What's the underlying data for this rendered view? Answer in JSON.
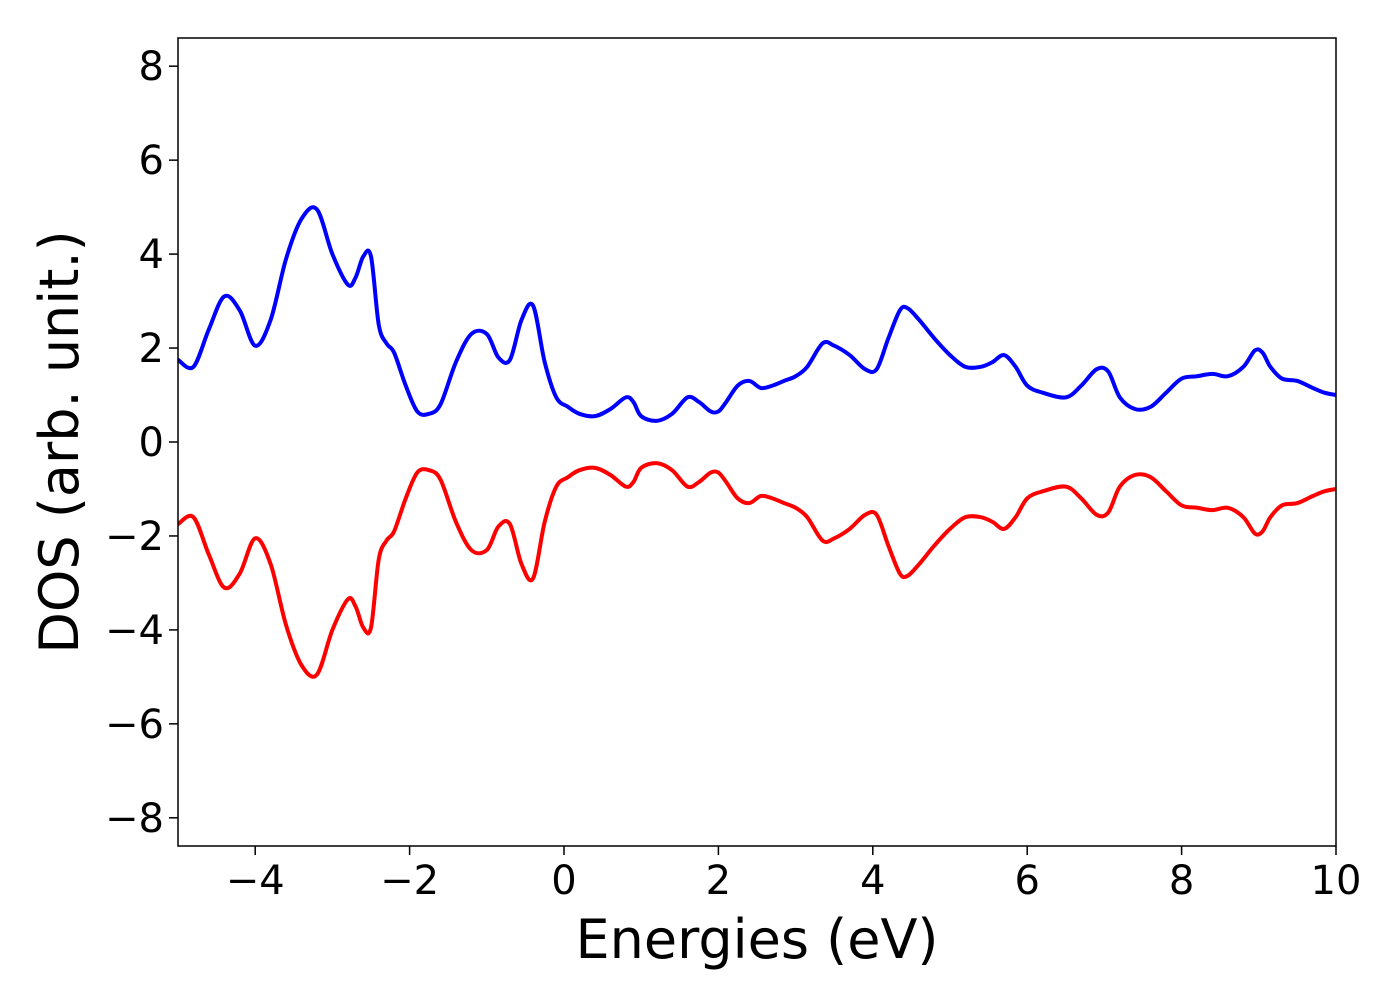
{
  "chart_data": {
    "type": "line",
    "title": "",
    "xlabel": "Energies (eV)",
    "ylabel": "DOS (arb. unit.)",
    "xlim": [
      -5,
      10
    ],
    "ylim": [
      -8.6,
      8.6
    ],
    "xticks": [
      -4,
      -2,
      0,
      2,
      4,
      6,
      8,
      10
    ],
    "xtick_labels": [
      "−4",
      "−2",
      "0",
      "2",
      "4",
      "6",
      "8",
      "10"
    ],
    "yticks": [
      8,
      6,
      4,
      2,
      0,
      -2,
      -4,
      -6,
      -8
    ],
    "ytick_labels": [
      "8",
      "6",
      "4",
      "2",
      "0",
      "−2",
      "−4",
      "−6",
      "−8"
    ],
    "grid": false,
    "legend": "none",
    "series": [
      {
        "color": "#0000ff",
        "x": [
          -5.0,
          -4.8,
          -4.6,
          -4.4,
          -4.2,
          -4.0,
          -3.8,
          -3.6,
          -3.4,
          -3.2,
          -3.0,
          -2.8,
          -2.7,
          -2.6,
          -2.5,
          -2.4,
          -2.3,
          -2.2,
          -2.05,
          -1.9,
          -1.75,
          -1.6,
          -1.4,
          -1.2,
          -1.0,
          -0.85,
          -0.7,
          -0.55,
          -0.4,
          -0.25,
          -0.1,
          0.05,
          0.2,
          0.4,
          0.6,
          0.8,
          0.9,
          1.0,
          1.2,
          1.4,
          1.6,
          1.75,
          1.9,
          2.0,
          2.1,
          2.25,
          2.4,
          2.55,
          2.7,
          2.85,
          3.0,
          3.15,
          3.35,
          3.5,
          3.7,
          3.9,
          4.05,
          4.2,
          4.35,
          4.45,
          4.6,
          4.8,
          5.0,
          5.2,
          5.4,
          5.55,
          5.7,
          5.85,
          6.0,
          6.2,
          6.5,
          6.7,
          6.9,
          7.05,
          7.2,
          7.4,
          7.6,
          7.8,
          8.0,
          8.2,
          8.4,
          8.6,
          8.8,
          8.95,
          9.05,
          9.15,
          9.3,
          9.5,
          9.7,
          9.85,
          10.0
        ],
        "values": [
          1.75,
          1.6,
          2.4,
          3.1,
          2.8,
          2.05,
          2.6,
          3.9,
          4.75,
          4.95,
          4.0,
          3.35,
          3.5,
          3.95,
          3.95,
          2.5,
          2.1,
          1.9,
          1.2,
          0.65,
          0.6,
          0.8,
          1.7,
          2.3,
          2.3,
          1.8,
          1.75,
          2.6,
          2.9,
          1.7,
          0.95,
          0.75,
          0.6,
          0.55,
          0.7,
          0.95,
          0.85,
          0.55,
          0.45,
          0.6,
          0.95,
          0.85,
          0.65,
          0.65,
          0.85,
          1.2,
          1.3,
          1.15,
          1.2,
          1.3,
          1.4,
          1.6,
          2.1,
          2.05,
          1.85,
          1.55,
          1.55,
          2.2,
          2.8,
          2.85,
          2.6,
          2.2,
          1.85,
          1.6,
          1.6,
          1.7,
          1.85,
          1.6,
          1.2,
          1.05,
          0.95,
          1.2,
          1.55,
          1.5,
          0.95,
          0.7,
          0.75,
          1.05,
          1.35,
          1.4,
          1.45,
          1.4,
          1.6,
          1.95,
          1.9,
          1.6,
          1.35,
          1.3,
          1.15,
          1.05,
          1.0
        ]
      },
      {
        "color": "#ff0000",
        "x": [
          -5.0,
          -4.8,
          -4.6,
          -4.4,
          -4.2,
          -4.0,
          -3.8,
          -3.6,
          -3.4,
          -3.2,
          -3.0,
          -2.8,
          -2.7,
          -2.6,
          -2.5,
          -2.4,
          -2.3,
          -2.2,
          -2.05,
          -1.9,
          -1.75,
          -1.6,
          -1.4,
          -1.2,
          -1.0,
          -0.85,
          -0.7,
          -0.55,
          -0.4,
          -0.25,
          -0.1,
          0.05,
          0.2,
          0.4,
          0.6,
          0.8,
          0.9,
          1.0,
          1.2,
          1.4,
          1.6,
          1.75,
          1.9,
          2.0,
          2.1,
          2.25,
          2.4,
          2.55,
          2.7,
          2.85,
          3.0,
          3.15,
          3.35,
          3.5,
          3.7,
          3.9,
          4.05,
          4.2,
          4.35,
          4.45,
          4.6,
          4.8,
          5.0,
          5.2,
          5.4,
          5.55,
          5.7,
          5.85,
          6.0,
          6.2,
          6.5,
          6.7,
          6.9,
          7.05,
          7.2,
          7.4,
          7.6,
          7.8,
          8.0,
          8.2,
          8.4,
          8.6,
          8.8,
          8.95,
          9.05,
          9.15,
          9.3,
          9.5,
          9.7,
          9.85,
          10.0
        ],
        "values": [
          -1.75,
          -1.6,
          -2.4,
          -3.1,
          -2.8,
          -2.05,
          -2.6,
          -3.9,
          -4.75,
          -4.95,
          -4.0,
          -3.35,
          -3.5,
          -3.95,
          -3.95,
          -2.5,
          -2.1,
          -1.9,
          -1.2,
          -0.65,
          -0.6,
          -0.8,
          -1.7,
          -2.3,
          -2.3,
          -1.8,
          -1.75,
          -2.6,
          -2.9,
          -1.7,
          -0.95,
          -0.75,
          -0.6,
          -0.55,
          -0.7,
          -0.95,
          -0.85,
          -0.55,
          -0.45,
          -0.6,
          -0.95,
          -0.85,
          -0.65,
          -0.65,
          -0.85,
          -1.2,
          -1.3,
          -1.15,
          -1.2,
          -1.3,
          -1.4,
          -1.6,
          -2.1,
          -2.05,
          -1.85,
          -1.55,
          -1.55,
          -2.2,
          -2.8,
          -2.85,
          -2.6,
          -2.2,
          -1.85,
          -1.6,
          -1.6,
          -1.7,
          -1.85,
          -1.6,
          -1.2,
          -1.05,
          -0.95,
          -1.2,
          -1.55,
          -1.5,
          -0.95,
          -0.7,
          -0.75,
          -1.05,
          -1.35,
          -1.4,
          -1.45,
          -1.4,
          -1.6,
          -1.95,
          -1.9,
          -1.6,
          -1.35,
          -1.3,
          -1.15,
          -1.05,
          -1.0
        ]
      }
    ]
  }
}
